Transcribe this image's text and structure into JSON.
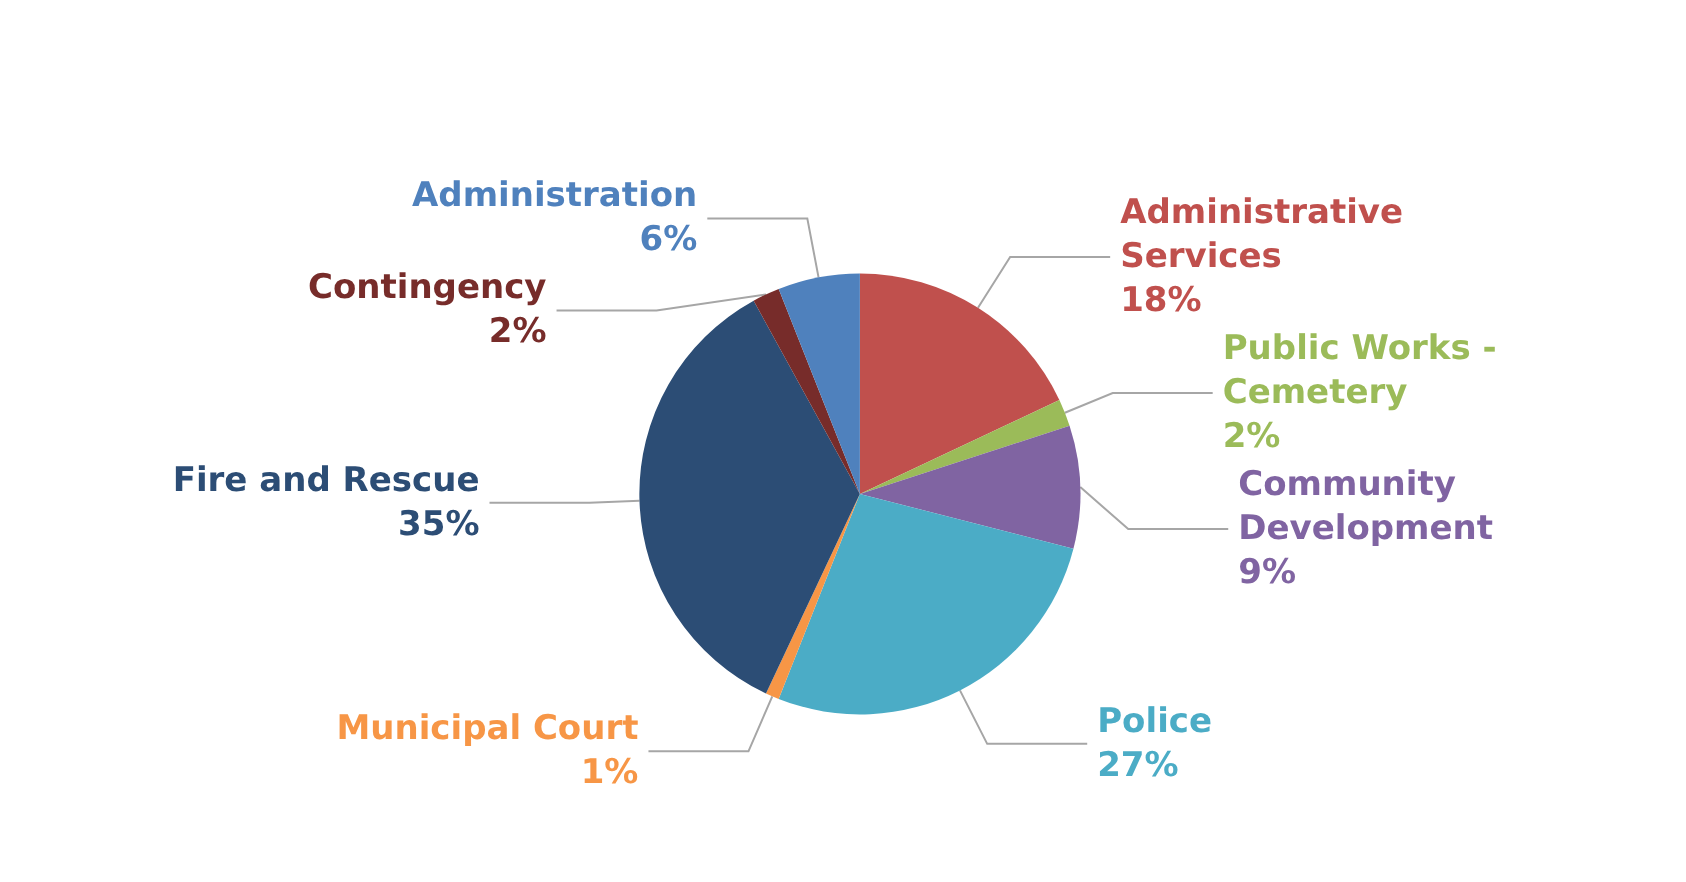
{
  "chart_data": {
    "type": "pie",
    "categories": [
      "Administrative Services",
      "Public Works - Cemetery",
      "Community Development",
      "Police",
      "Municipal Court",
      "Fire and Rescue",
      "Contingency",
      "Administration"
    ],
    "values": [
      18,
      2,
      9,
      27,
      1,
      35,
      2,
      6
    ],
    "value_labels": [
      "18%",
      "2%",
      "9%",
      "27%",
      "1%",
      "35%",
      "2%",
      "6%"
    ],
    "colors": [
      "#c0504d",
      "#9bbb59",
      "#8064a2",
      "#4bacc6",
      "#f79646",
      "#2c4d75",
      "#772c2a",
      "#4f81bd"
    ],
    "legend": false
  }
}
